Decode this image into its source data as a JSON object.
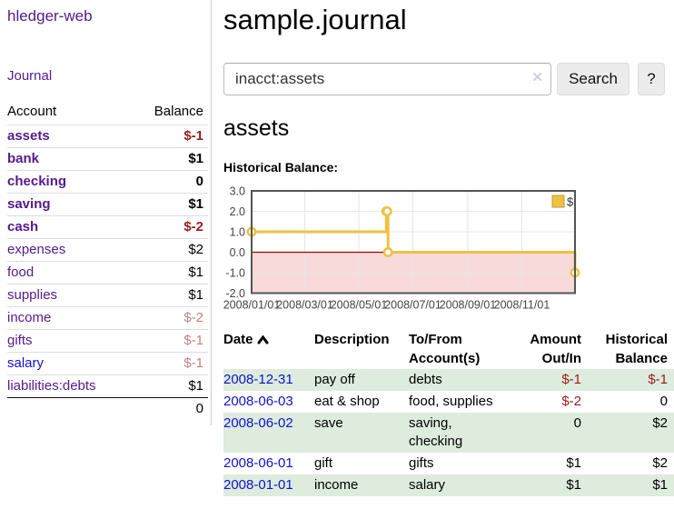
{
  "sidebar": {
    "app_title": "hledger-web",
    "nav": {
      "journal": "Journal"
    },
    "accounts_table": {
      "headers": {
        "account": "Account",
        "balance": "Balance"
      },
      "rows": [
        {
          "name": "assets",
          "level": 0,
          "bold": true,
          "balance": "$-1",
          "neg": "strong"
        },
        {
          "name": "bank",
          "level": 1,
          "bold": true,
          "balance": "$1"
        },
        {
          "name": "checking",
          "level": 2,
          "bold": true,
          "balance": "0"
        },
        {
          "name": "saving",
          "level": 2,
          "bold": true,
          "balance": "$1"
        },
        {
          "name": "cash",
          "level": 1,
          "bold": true,
          "balance": "$-2",
          "neg": "strong"
        },
        {
          "name": "expenses",
          "level": 0,
          "bold": false,
          "balance": "$2"
        },
        {
          "name": "food",
          "level": 1,
          "bold": false,
          "balance": "$1"
        },
        {
          "name": "supplies",
          "level": 1,
          "bold": false,
          "balance": "$1"
        },
        {
          "name": "income",
          "level": 0,
          "bold": false,
          "balance": "$-2",
          "neg": "muted"
        },
        {
          "name": "gifts",
          "level": 1,
          "bold": false,
          "balance": "$-1",
          "neg": "muted"
        },
        {
          "name": "salary",
          "level": 1,
          "bold": false,
          "balance": "$-1",
          "neg": "muted",
          "unvisited": true
        },
        {
          "name": "liabilities:debts",
          "level": 0,
          "bold": false,
          "balance": "$1"
        }
      ],
      "total": "0"
    }
  },
  "main": {
    "title": "sample.journal",
    "search": {
      "value": "inacct:assets",
      "clear_icon": "✕",
      "button": "Search",
      "help_button": "?"
    },
    "heading": "assets",
    "chart_label": "Historical Balance:"
  },
  "chart_data": {
    "type": "line",
    "title": "Historical Balance:",
    "step": true,
    "legend": {
      "label": "$",
      "position": "top-right"
    },
    "ylim": [
      -2,
      3
    ],
    "y_ticks": [
      "3.0",
      "2.0",
      "1.0",
      "0.0",
      "-1.0",
      "-2.0"
    ],
    "y_tick_values": [
      3,
      2,
      1,
      0,
      -1,
      -2
    ],
    "x_ticks": [
      "2008/01/01",
      "2008/03/01",
      "2008/05/01",
      "2008/07/01",
      "2008/09/01",
      "2008/11/01"
    ],
    "x_tick_pos": [
      0,
      0.1644,
      0.3315,
      0.4986,
      0.6685,
      0.8356
    ],
    "series": [
      {
        "name": "$",
        "color": "#edc240",
        "points": [
          {
            "date": "2008-01-01",
            "t": 0,
            "value": 1
          },
          {
            "date": "2008-06-01",
            "t": 0.4164,
            "value": 2
          },
          {
            "date": "2008-06-02",
            "t": 0.4192,
            "value": 2
          },
          {
            "date": "2008-06-03",
            "t": 0.4219,
            "value": 0
          },
          {
            "date": "2008-12-31",
            "t": 1,
            "value": -1
          }
        ]
      }
    ],
    "grid": {
      "border_color": "#545454",
      "line_color": "#e6e6e6",
      "zero_line_color": "#a40000",
      "negative_region_color": "#f8dada",
      "tick_label_color": "#444444"
    }
  },
  "transactions": {
    "headers": {
      "date": "Date",
      "description": "Description",
      "accounts": "To/From Account(s)",
      "amount": "Amount Out/In",
      "balance": "Historical Balance"
    },
    "sort_icon": "chevron-up",
    "rows": [
      {
        "date": "2008-12-31",
        "description": "pay off",
        "accounts": "debts",
        "amount": "$-1",
        "amount_neg": true,
        "balance": "$-1",
        "balance_neg": true
      },
      {
        "date": "2008-06-03",
        "description": "eat & shop",
        "accounts": "food, supplies",
        "amount": "$-2",
        "amount_neg": true,
        "balance": "0",
        "balance_neg": false
      },
      {
        "date": "2008-06-02",
        "description": "save",
        "accounts": "saving, checking",
        "amount": "0",
        "amount_neg": false,
        "balance": "$2",
        "balance_neg": false
      },
      {
        "date": "2008-06-01",
        "description": "gift",
        "accounts": "gifts",
        "amount": "$1",
        "amount_neg": false,
        "balance": "$2",
        "balance_neg": false
      },
      {
        "date": "2008-01-01",
        "description": "income",
        "accounts": "salary",
        "amount": "$1",
        "amount_neg": false,
        "balance": "$1",
        "balance_neg": false
      }
    ]
  },
  "colors": {
    "link_purple": "#551a8b",
    "link_blue": "#1212cc",
    "negative_strong": "#9b1c1c",
    "negative_muted": "#c08585",
    "row_stripe_green": "#ddecdd",
    "chart_line_gold": "#edc240"
  }
}
